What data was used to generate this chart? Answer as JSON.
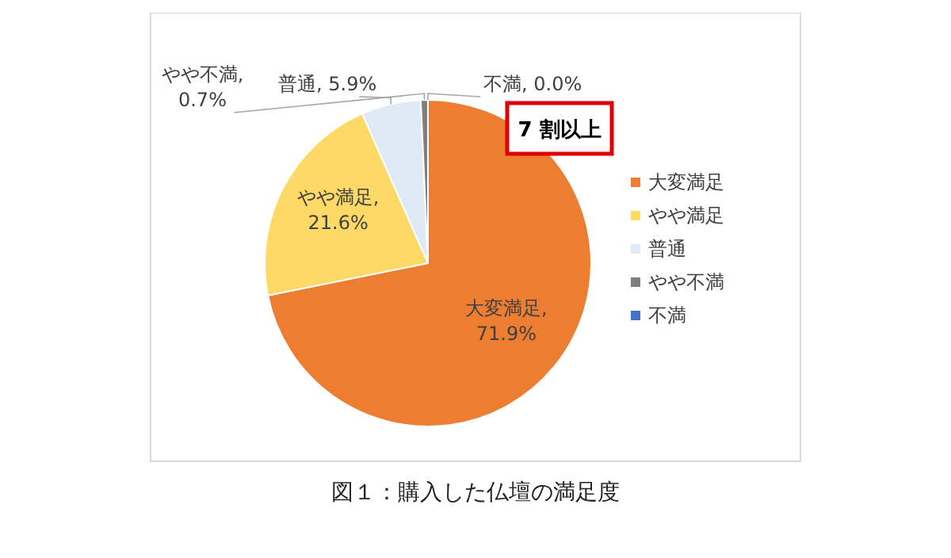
{
  "chart_data": {
    "type": "pie",
    "title": "図１：購入した仏壇の満足度",
    "categories": [
      "大変満足",
      "やや満足",
      "普通",
      "やや不満",
      "不満"
    ],
    "values": [
      71.9,
      21.6,
      5.9,
      0.7,
      0.0
    ],
    "colors": [
      "#ed7d31",
      "#ffd966",
      "#deebf7",
      "#7f7f7f",
      "#4472c4"
    ],
    "value_labels": [
      "大変満足,\n71.9%",
      "やや満足,\n21.6%",
      "普通, 5.9%",
      "やや不満,\n0.7%",
      "不満, 0.0%"
    ],
    "annotations": [
      "7 割以上"
    ],
    "legend": "right"
  }
}
